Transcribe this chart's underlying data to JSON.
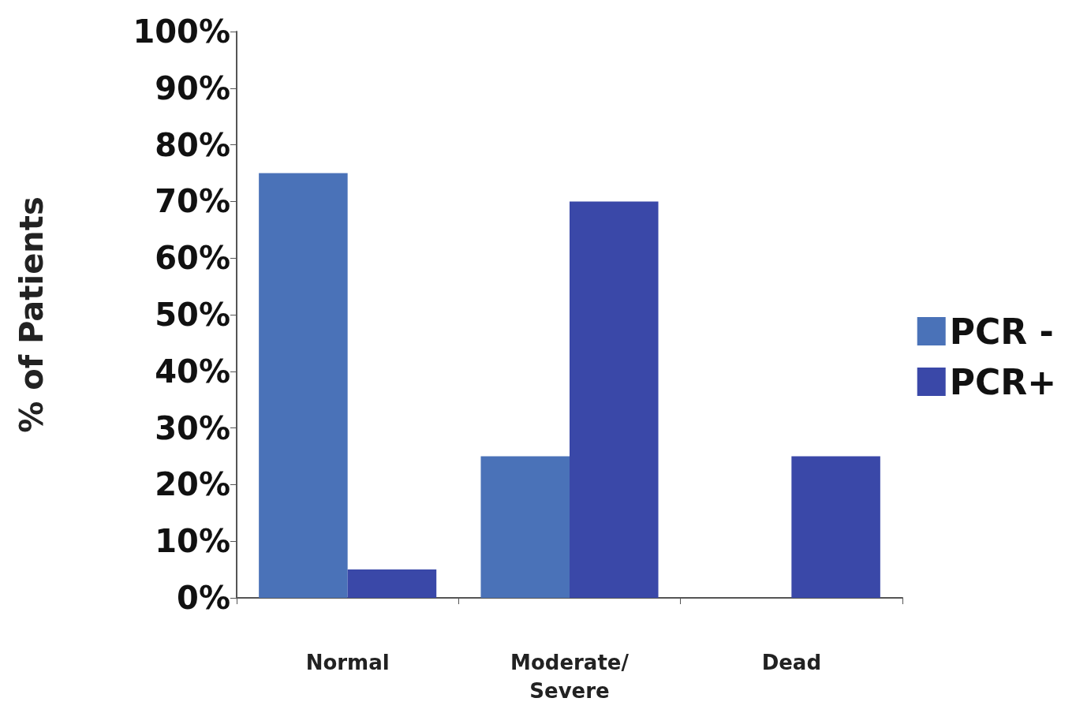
{
  "chart_data": {
    "type": "bar",
    "ylabel": "% of Patients",
    "categories": [
      "Normal",
      "Moderate/\nSevere",
      "Dead"
    ],
    "series": [
      {
        "name": "PCR -",
        "color": "#4a72b8",
        "values": [
          75,
          25,
          0
        ]
      },
      {
        "name": "PCR+",
        "color": "#3a48a8",
        "values": [
          5,
          70,
          25
        ]
      }
    ],
    "ylim": [
      0,
      100
    ],
    "yticks": [
      {
        "value": 0,
        "label": "0%"
      },
      {
        "value": 10,
        "label": "10%"
      },
      {
        "value": 20,
        "label": "20%"
      },
      {
        "value": 30,
        "label": "30%"
      },
      {
        "value": 40,
        "label": "40%"
      },
      {
        "value": 50,
        "label": "50%"
      },
      {
        "value": 60,
        "label": "60%"
      },
      {
        "value": 70,
        "label": "70%"
      },
      {
        "value": 80,
        "label": "80%"
      },
      {
        "value": 90,
        "label": "90%"
      },
      {
        "value": 100,
        "label": "100%"
      }
    ],
    "grid": false,
    "legend": "right"
  }
}
